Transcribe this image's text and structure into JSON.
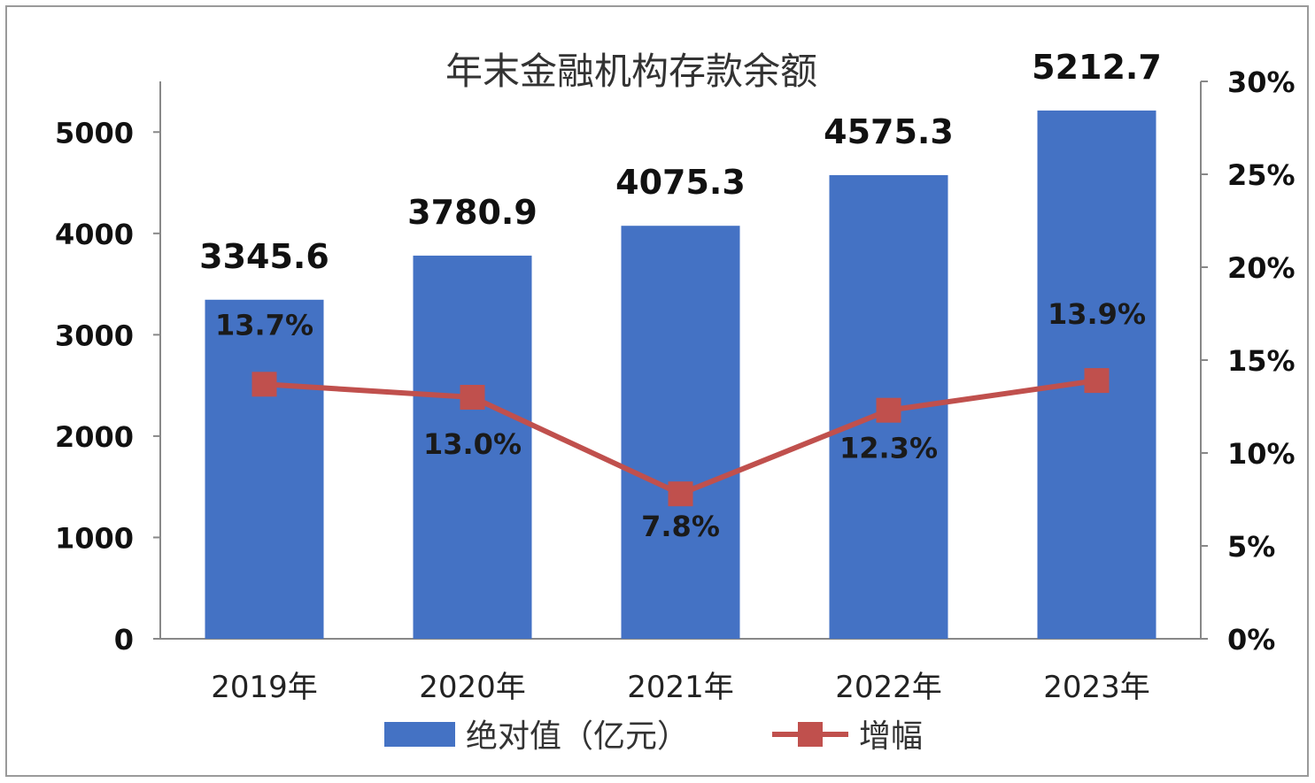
{
  "chart_data": {
    "type": "bar",
    "title": "年末金融机构存款余额",
    "categories": [
      "2019年",
      "2020年",
      "2021年",
      "2022年",
      "2023年"
    ],
    "series": [
      {
        "name": "绝对值（亿元）",
        "type": "bar",
        "axis": "left",
        "values": [
          3345.6,
          3780.9,
          4075.3,
          4575.3,
          5212.7
        ],
        "labels": [
          "3345.6",
          "3780.9",
          "4075.3",
          "4575.3",
          "5212.7"
        ],
        "color": "#4472C4"
      },
      {
        "name": "增幅",
        "type": "line",
        "axis": "right",
        "values": [
          13.7,
          13.0,
          7.8,
          12.3,
          13.9
        ],
        "labels": [
          "13.7%",
          "13.0%",
          "7.8%",
          "12.3%",
          "13.9%"
        ],
        "color": "#C0504D"
      }
    ],
    "y_left": {
      "ylim": [
        0,
        5500
      ],
      "ticks": [
        0,
        1000,
        2000,
        3000,
        4000,
        5000
      ],
      "tick_labels": [
        "0",
        "1000",
        "2000",
        "3000",
        "4000",
        "5000"
      ]
    },
    "y_right": {
      "ylim": [
        0,
        30
      ],
      "ticks": [
        0,
        5,
        10,
        15,
        20,
        25,
        30
      ],
      "tick_labels": [
        "0%",
        "5%",
        "10%",
        "15%",
        "20%",
        "25%",
        "30%"
      ]
    },
    "grid": false,
    "legend_position": "bottom"
  }
}
